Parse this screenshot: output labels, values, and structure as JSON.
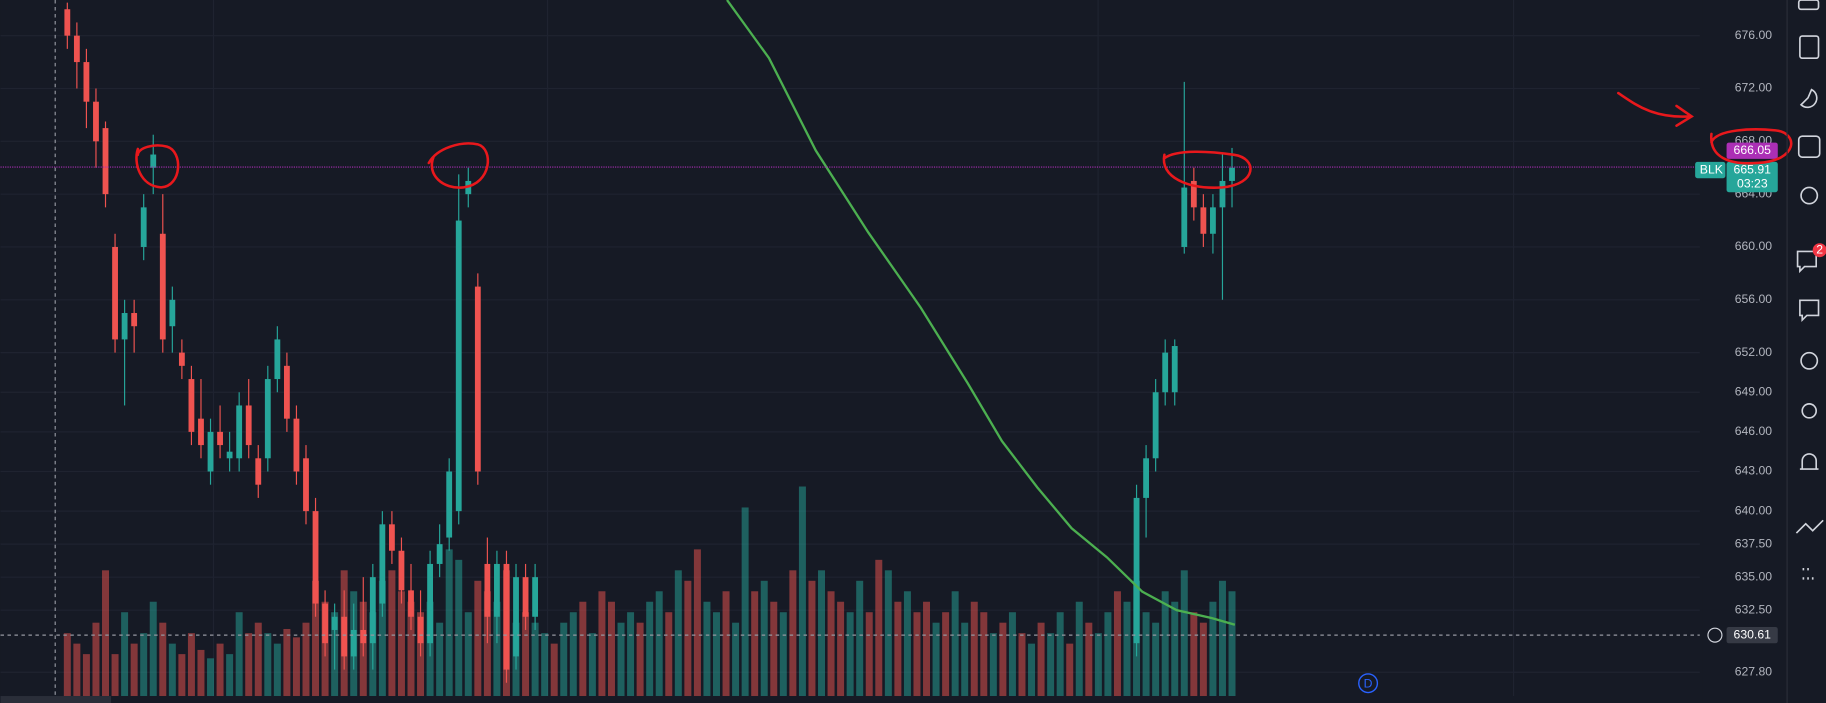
{
  "chart_data": {
    "type": "candlestick",
    "symbol": "BLK",
    "x": [
      0,
      1,
      2,
      3,
      4,
      5,
      6,
      7,
      8,
      9,
      10,
      11,
      12,
      13,
      14,
      15,
      16,
      17,
      18,
      19,
      20,
      21,
      22,
      23,
      24,
      25,
      26,
      27,
      28,
      29,
      30,
      31,
      32,
      33,
      34,
      35,
      36,
      37,
      38,
      39,
      40,
      41,
      42,
      43,
      44,
      45,
      46,
      47,
      48,
      49,
      112,
      113,
      114,
      115,
      116,
      117,
      118,
      119,
      120,
      121,
      122
    ],
    "open": [
      678,
      676,
      674,
      671,
      669,
      660,
      653,
      655,
      660,
      666,
      661,
      654,
      652,
      650,
      647,
      643,
      646,
      644,
      644,
      648,
      644,
      644,
      650,
      651,
      647,
      644,
      640,
      633,
      631,
      632,
      629,
      631,
      630,
      633,
      639,
      637,
      634,
      632,
      630,
      636,
      638,
      640,
      664,
      657,
      636,
      632,
      636,
      629,
      635,
      632,
      630,
      641,
      644,
      649,
      649,
      660,
      665,
      663,
      661,
      663,
      665
    ],
    "high": [
      678.5,
      677,
      675,
      672,
      669.5,
      661,
      656,
      656,
      664,
      668.5,
      664,
      657,
      653,
      651,
      650,
      647,
      648,
      646,
      649,
      650,
      645,
      651,
      654,
      652,
      648,
      645,
      641,
      634,
      633,
      634,
      633,
      635,
      636,
      640,
      640,
      638,
      636,
      634,
      637,
      639,
      644,
      665.5,
      666,
      658,
      638,
      637,
      637,
      636,
      636,
      636,
      642,
      645,
      650,
      653,
      653,
      672.5,
      666,
      664,
      664,
      667,
      667.5
    ],
    "low": [
      675,
      672,
      669,
      666,
      663,
      652,
      648,
      652,
      659,
      664,
      652,
      652,
      650,
      645,
      644,
      642,
      644,
      643,
      643,
      644,
      641,
      643,
      649,
      646,
      642,
      639,
      632,
      629,
      628,
      628,
      628,
      629,
      628,
      632,
      636,
      633,
      631,
      629,
      629,
      635,
      637,
      639,
      663,
      642,
      630,
      630,
      627,
      628,
      631,
      631,
      629,
      638,
      643,
      648,
      648,
      659.5,
      662,
      660,
      659.5,
      656,
      663
    ],
    "close": [
      676,
      674,
      671,
      668,
      664,
      653,
      655,
      654,
      663,
      667,
      653,
      656,
      651,
      646,
      645,
      646,
      645,
      644.5,
      648,
      645,
      642,
      650,
      653,
      647,
      643,
      640,
      633,
      630,
      632,
      629,
      631,
      630,
      635,
      639,
      637,
      634,
      632,
      630,
      636,
      637.5,
      643,
      662,
      665,
      643,
      632,
      636,
      628,
      635,
      632,
      635,
      641,
      644,
      649,
      652,
      652.5,
      664.5,
      663,
      661,
      663,
      665,
      666
    ],
    "up_color": "#26a69a",
    "down_color": "#ef5350",
    "xlim": [
      -7,
      171
    ],
    "ylim": [
      626,
      678.7
    ],
    "yticks": [
      {
        "value": 676,
        "label": "676.00"
      },
      {
        "value": 672,
        "label": "672.00"
      },
      {
        "value": 668,
        "label": "668.00"
      },
      {
        "value": 664,
        "label": "664.00"
      },
      {
        "value": 660,
        "label": "660.00"
      },
      {
        "value": 656,
        "label": "656.00"
      },
      {
        "value": 652,
        "label": "652.00"
      },
      {
        "value": 649,
        "label": "649.00"
      },
      {
        "value": 646,
        "label": "646.00"
      },
      {
        "value": 643,
        "label": "643.00"
      },
      {
        "value": 640,
        "label": "640.00"
      },
      {
        "value": 637.5,
        "label": "637.50"
      },
      {
        "value": 635,
        "label": "635.00"
      },
      {
        "value": 632.5,
        "label": "632.50"
      },
      {
        "value": 627.8,
        "label": "627.80"
      }
    ],
    "grid": true,
    "volume": {
      "series": [
        {
          "color": "#26a69a",
          "values": [
            null,
            null,
            null,
            null,
            null,
            null,
            40,
            null,
            30,
            45,
            null,
            25,
            null,
            null,
            null,
            18,
            null,
            20,
            40,
            null,
            null,
            30,
            25,
            null,
            null,
            null,
            null,
            null,
            40,
            null,
            50,
            null,
            40,
            55,
            null,
            null,
            null,
            null,
            45,
            35,
            70,
            65,
            40,
            null,
            null,
            45,
            null,
            35,
            null,
            35,
            30,
            null,
            35,
            40,
            null,
            30,
            null,
            null,
            35,
            40,
            null,
            45,
            50,
            null,
            60,
            null,
            null,
            45,
            40,
            null,
            35,
            90,
            null,
            55,
            null,
            40,
            null,
            100,
            null,
            60,
            null,
            null,
            40,
            55,
            null,
            null,
            60,
            null,
            50,
            null,
            null,
            35,
            null,
            50,
            35,
            null,
            null,
            30,
            null,
            40,
            null,
            25,
            null,
            30,
            40,
            null,
            45,
            null,
            30,
            40,
            null,
            45,
            55,
            40,
            35,
            50,
            45,
            60,
            null,
            null,
            45,
            55,
            50
          ]
        },
        {
          "color": "#ef5350",
          "values": [
            30,
            25,
            20,
            35,
            60,
            20,
            null,
            25,
            null,
            null,
            35,
            null,
            20,
            30,
            22,
            null,
            25,
            null,
            null,
            30,
            35,
            null,
            null,
            32,
            28,
            35,
            55,
            45,
            null,
            60,
            null,
            45,
            null,
            null,
            60,
            50,
            45,
            40,
            null,
            null,
            null,
            null,
            null,
            55,
            50,
            null,
            60,
            null,
            40,
            null,
            null,
            25,
            null,
            null,
            45,
            null,
            50,
            45,
            null,
            null,
            35,
            null,
            null,
            40,
            null,
            55,
            70,
            null,
            null,
            50,
            null,
            null,
            50,
            null,
            45,
            null,
            60,
            null,
            55,
            null,
            50,
            45,
            null,
            null,
            40,
            65,
            null,
            45,
            null,
            40,
            45,
            null,
            40,
            null,
            null,
            45,
            40,
            null,
            35,
            null,
            30,
            null,
            35,
            null,
            null,
            25,
            null,
            35,
            null,
            null,
            50,
            null,
            null,
            null,
            null,
            null,
            null,
            null,
            40,
            35,
            null,
            null,
            null
          ]
        }
      ]
    },
    "moving_average": {
      "color": "#4caf50",
      "x": [
        69.1,
        73.5,
        78.4,
        83.9,
        89.4,
        94.3,
        97.9,
        101.6,
        105.2,
        108.9,
        112.6,
        116.2,
        119.9,
        122.3
      ],
      "values": [
        678.7,
        674.3,
        667.3,
        661.1,
        655.4,
        649.7,
        645.3,
        641.8,
        638.7,
        636.5,
        633.9,
        632.5,
        631.9,
        631.4
      ]
    },
    "price_line": {
      "value": 666.05,
      "label": "666.05",
      "color": "#ab2fb5"
    },
    "last": {
      "value": 665.91,
      "label": "665.91",
      "countdown": "03:23"
    },
    "crosshair": {
      "value": 630.61,
      "label": "630.61"
    },
    "marker": "D"
  },
  "toolbar_badge": "2"
}
